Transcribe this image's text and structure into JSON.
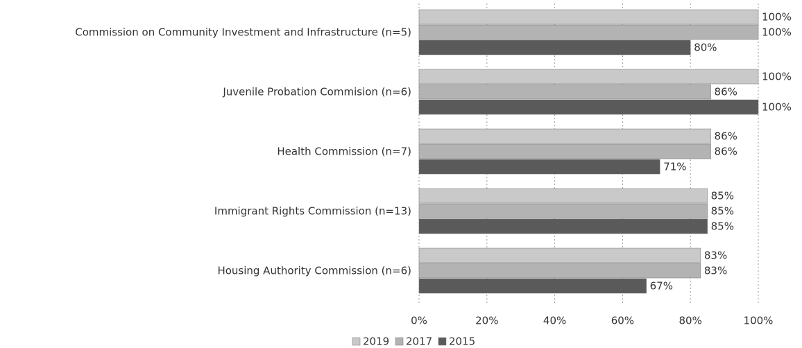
{
  "chart_data": {
    "type": "hbar",
    "categories": [
      "Commission on Community Investment and Infrastructure (n=5)",
      "Juvenile Probation Commision (n=6)",
      "Health Commission (n=7)",
      "Immigrant Rights Commission (n=13)",
      "Housing Authority Commission (n=6)"
    ],
    "series": [
      {
        "name": "2019",
        "color": "#c9c9c9",
        "values": [
          100,
          100,
          86,
          85,
          83
        ],
        "value_labels": [
          "100%",
          "100%",
          "86%",
          "85%",
          "83%"
        ]
      },
      {
        "name": "2017",
        "color": "#b3b3b3",
        "values": [
          100,
          86,
          86,
          85,
          83
        ],
        "value_labels": [
          "100%",
          "86%",
          "86%",
          "85%",
          "83%"
        ]
      },
      {
        "name": "2015",
        "color": "#5a5a5a",
        "values": [
          80,
          100,
          71,
          85,
          67
        ],
        "value_labels": [
          "80%",
          "100%",
          "71%",
          "85%",
          "67%"
        ]
      }
    ],
    "xlim": [
      0,
      100
    ],
    "xticks": [
      {
        "value": 0,
        "label": "0%"
      },
      {
        "value": 20,
        "label": "20%"
      },
      {
        "value": 40,
        "label": "40%"
      },
      {
        "value": 60,
        "label": "60%"
      },
      {
        "value": 80,
        "label": "80%"
      },
      {
        "value": 100,
        "label": "100%"
      }
    ],
    "grid": true,
    "legend": "bottom"
  }
}
